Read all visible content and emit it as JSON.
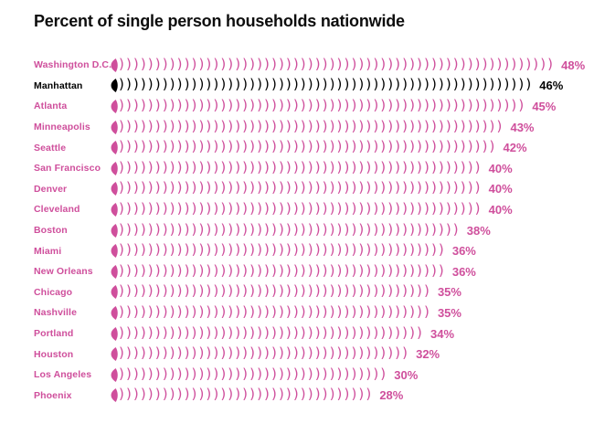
{
  "title": "Percent of single person households nationwide",
  "colors": {
    "pink": "#cf4f9c",
    "highlight_black": "#000000",
    "title_black": "#0d0d0d",
    "background": "#ffffff"
  },
  "chart_data": {
    "type": "bar",
    "orientation": "horizontal",
    "bar_style": "repeated-parenthesis-glyphs",
    "title": "Percent of single person households nationwide",
    "unit": "%",
    "xlim": [
      0,
      50
    ],
    "grid": false,
    "legend": false,
    "highlight": "Manhattan",
    "categories": [
      "Washington D.C.",
      "Manhattan",
      "Atlanta",
      "Minneapolis",
      "Seattle",
      "San Francisco",
      "Denver",
      "Cleveland",
      "Boston",
      "Miami",
      "New Orleans",
      "Chicago",
      "Nashville",
      "Portland",
      "Houston",
      "Los Angeles",
      "Phoenix"
    ],
    "values": [
      48,
      46,
      45,
      43,
      42,
      40,
      40,
      40,
      38,
      36,
      36,
      35,
      35,
      34,
      32,
      30,
      28
    ],
    "value_labels": [
      "48%",
      "46%",
      "45%",
      "43%",
      "42%",
      "40%",
      "40%",
      "40%",
      "38%",
      "36%",
      "36%",
      "35%",
      "35%",
      "34%",
      "32%",
      "30%",
      "28%"
    ]
  }
}
